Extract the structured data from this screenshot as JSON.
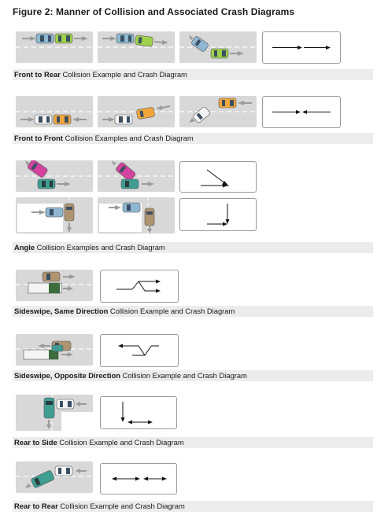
{
  "figure": {
    "title": "Figure 2: Manner of Collision and Associated Crash Diagrams"
  },
  "sections": [
    {
      "bold": "Front to Rear",
      "rest": " Collision Example and Crash Diagram"
    },
    {
      "bold": "Front to Front",
      "rest": " Collision Examples and Crash Diagram"
    },
    {
      "bold": "Angle",
      "rest": " Collision Examples and Crash Diagram"
    },
    {
      "bold": "Sideswipe, Same Direction",
      "rest": " Collision Example and Crash Diagram"
    },
    {
      "bold": "Sideswipe, Opposite Direction",
      "rest": " Collision Example and Crash Diagram"
    },
    {
      "bold": "Rear to Side",
      "rest": " Collision Example and Crash Diagram"
    },
    {
      "bold": "Rear to Rear",
      "rest": " Collision Example and Crash Diagram"
    }
  ],
  "colors": {
    "road": "#d8d8d8",
    "lane": "#ffffff",
    "motion": "#9b9b9b",
    "car_blue": "#8fb7d1",
    "car_green": "#9fd14b",
    "car_orange": "#f3a73b",
    "car_magenta": "#d4439f",
    "car_teal": "#3f9d92",
    "car_tan": "#b09470",
    "car_dkgreen": "#3c6b3c",
    "car_white": "#f4f4f4",
    "car_grey": "#d0d0d0"
  }
}
